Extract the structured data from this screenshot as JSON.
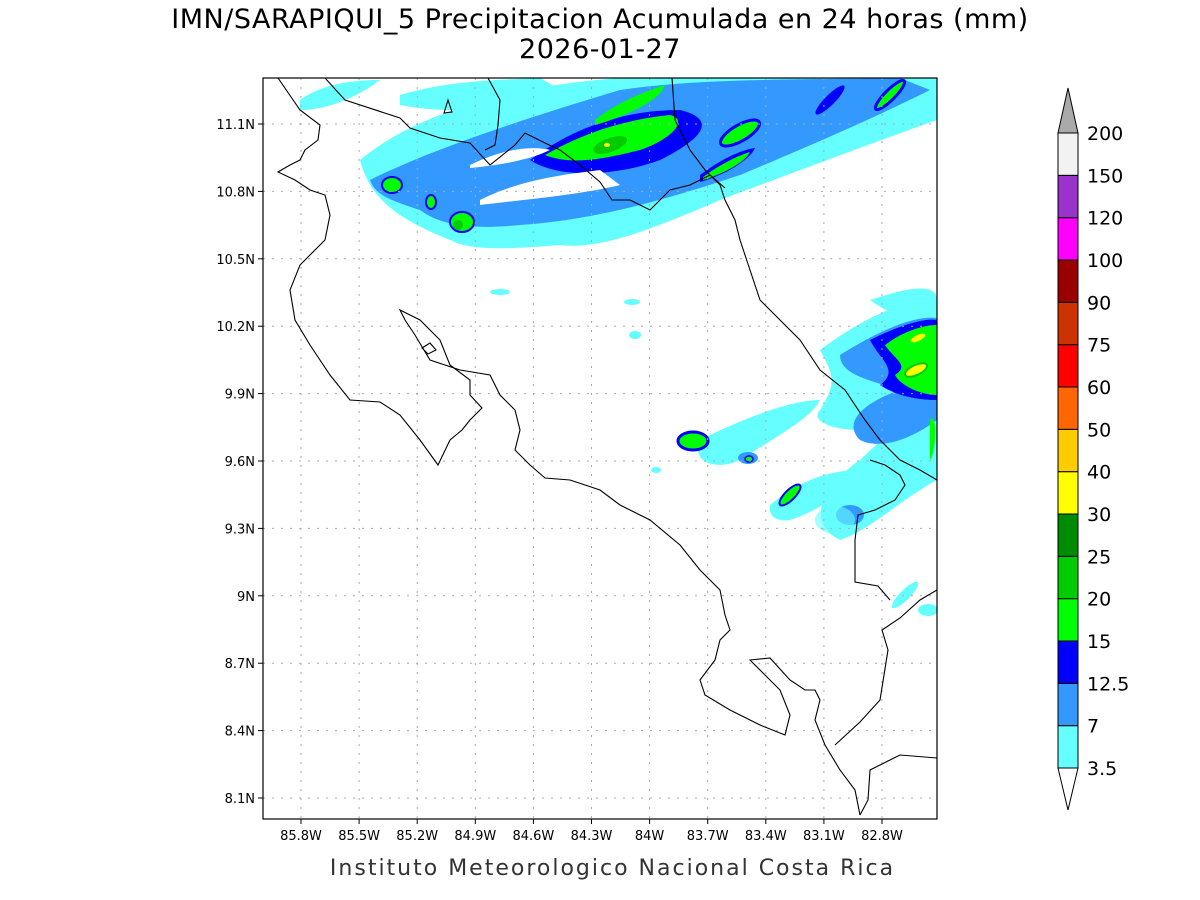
{
  "title_line1": "IMN/SARAPIQUI_5 Precipitacion Acumulada en 24 horas (mm)",
  "title_line2": "2026-01-27",
  "footer": "Instituto Meteorologico Nacional Costa Rica",
  "map": {
    "lat_ticks": [
      "11.1N",
      "10.8N",
      "10.5N",
      "10.2N",
      "9.9N",
      "9.6N",
      "9.3N",
      "9N",
      "8.7N",
      "8.4N",
      "8.1N"
    ],
    "lat_values": [
      11.1,
      10.8,
      10.5,
      10.2,
      9.9,
      9.6,
      9.3,
      9.0,
      8.7,
      8.4,
      8.1
    ],
    "lon_ticks": [
      "85.8W",
      "85.5W",
      "85.2W",
      "84.9W",
      "84.6W",
      "84.3W",
      "84W",
      "83.7W",
      "83.4W",
      "83.1W",
      "82.8W"
    ],
    "lon_values": [
      85.8,
      85.5,
      85.2,
      84.9,
      84.6,
      84.3,
      84.0,
      83.7,
      83.4,
      83.1,
      82.8
    ]
  },
  "colorbar": {
    "labels": [
      "3.5",
      "7",
      "12.5",
      "15",
      "20",
      "25",
      "30",
      "40",
      "50",
      "60",
      "75",
      "90",
      "100",
      "120",
      "150",
      "200"
    ],
    "colors": [
      "#66ffff",
      "#3399ff",
      "#0000ff",
      "#00ff00",
      "#00cc00",
      "#008c00",
      "#ffff00",
      "#ffcc00",
      "#ff6600",
      "#ff0000",
      "#cc3300",
      "#990000",
      "#ff00ff",
      "#9933cc",
      "#f2f2f2"
    ],
    "over_color": "#aaaaaa",
    "under_color": "#ffffff"
  }
}
